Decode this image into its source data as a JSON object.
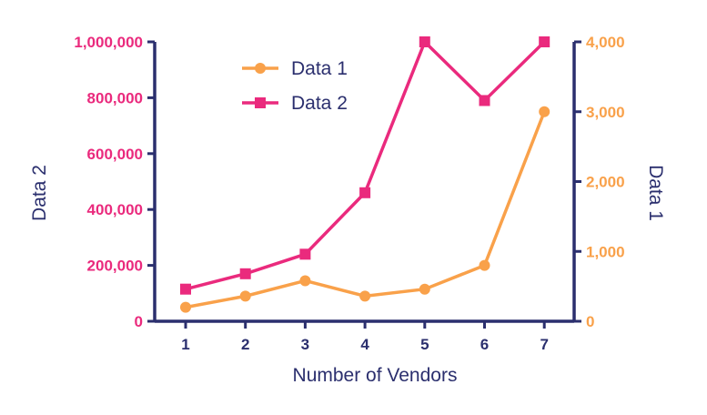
{
  "colors": {
    "axis": "#2b2f6e",
    "series1": "#f9a14a",
    "series2": "#ea2a7d"
  },
  "chart_data": {
    "type": "line",
    "x": [
      1,
      2,
      3,
      4,
      5,
      6,
      7
    ],
    "xlabel": "Number of Vendors",
    "ylabel_left": "Data 2",
    "ylabel_right": "Data 1",
    "ylim_left": [
      0,
      1000000
    ],
    "ylim_right": [
      0,
      4000
    ],
    "left_ticks": [
      "0",
      "200,000",
      "400,000",
      "600,000",
      "800,000",
      "1,000,000"
    ],
    "right_ticks": [
      "0",
      "1,000",
      "2,000",
      "3,000",
      "4,000"
    ],
    "x_ticks": [
      "1",
      "2",
      "3",
      "4",
      "5",
      "6",
      "7"
    ],
    "legend_position": "top-center",
    "grid": false,
    "series": [
      {
        "name": "Data 1",
        "axis": "right",
        "marker": "circle",
        "values": [
          200,
          360,
          580,
          360,
          460,
          800,
          3000
        ]
      },
      {
        "name": "Data 2",
        "axis": "left",
        "marker": "square",
        "values": [
          115000,
          170000,
          240000,
          460000,
          1000000,
          790000,
          1000000
        ]
      }
    ]
  }
}
